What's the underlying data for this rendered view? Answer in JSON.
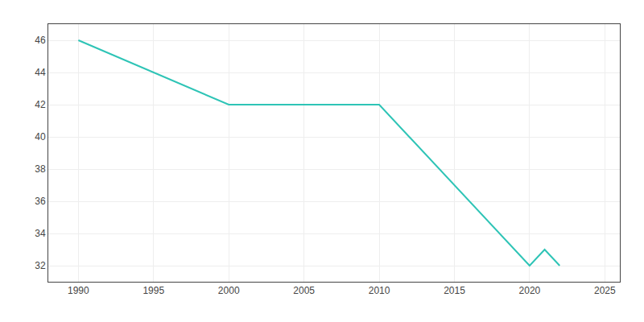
{
  "chart_data": {
    "type": "line",
    "x": [
      1990,
      2000,
      2005,
      2010,
      2020,
      2021,
      2022
    ],
    "values": [
      46,
      42,
      42,
      42,
      32,
      33,
      32
    ],
    "color": "#2ec4b6",
    "xlim": [
      1988,
      2026
    ],
    "ylim": [
      31,
      47
    ],
    "xticks": [
      1990,
      1995,
      2000,
      2005,
      2010,
      2015,
      2020,
      2025
    ],
    "yticks": [
      32,
      34,
      36,
      38,
      40,
      42,
      44,
      46
    ],
    "grid": true
  }
}
